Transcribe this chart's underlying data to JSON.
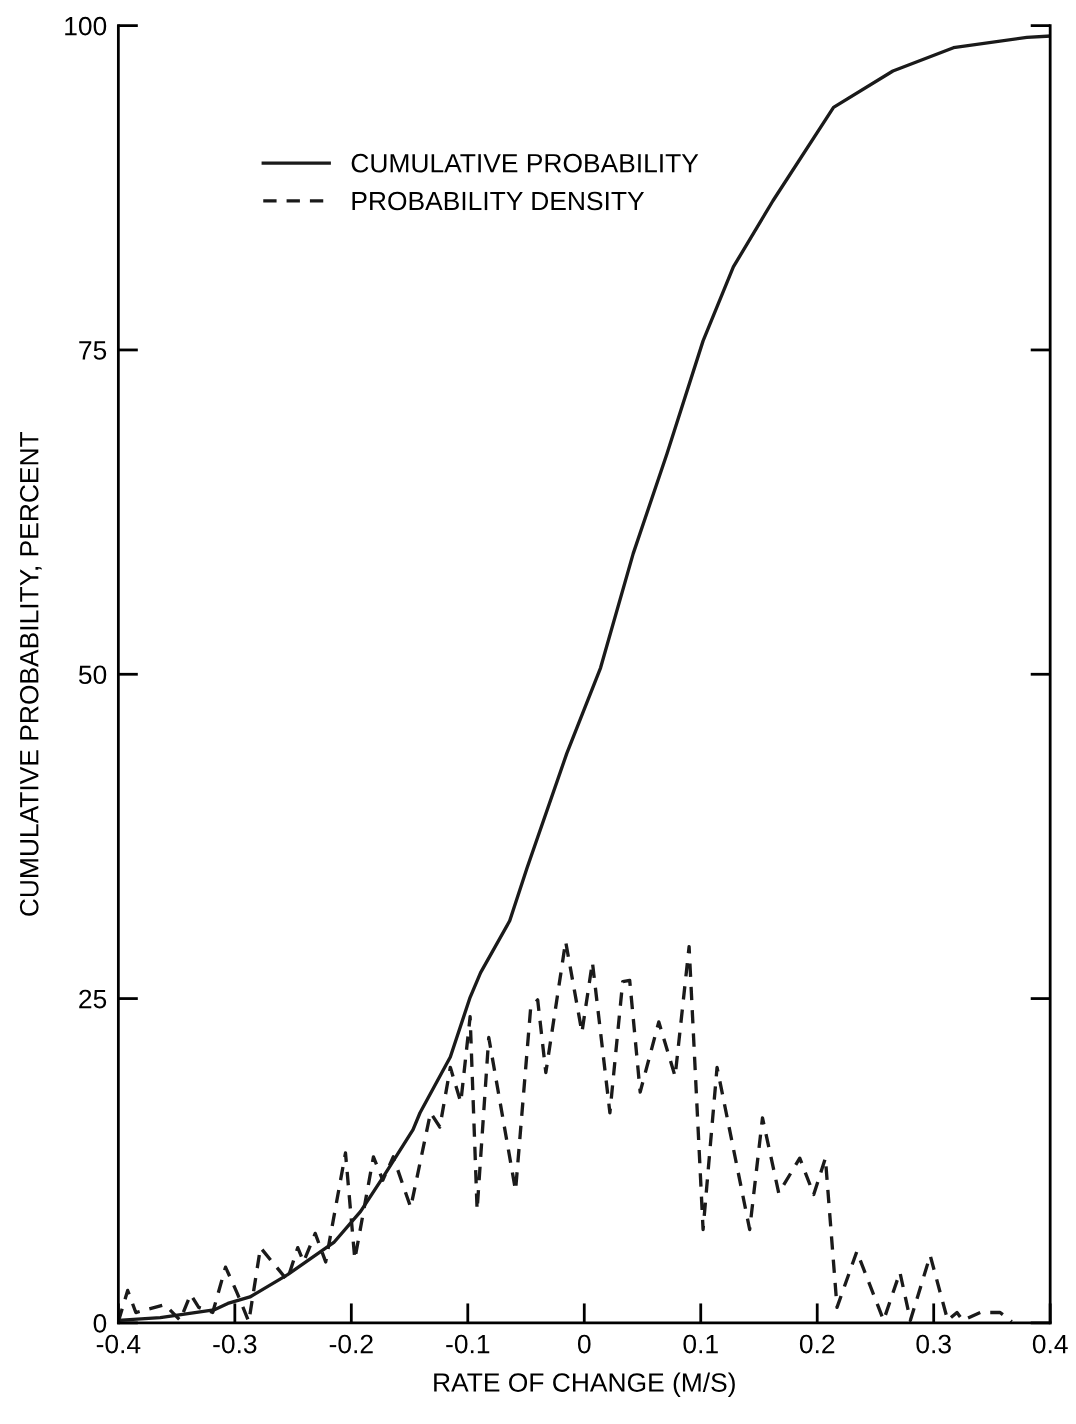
{
  "chart_data": {
    "type": "line",
    "xlabel": "RATE OF CHANGE (M/S)",
    "ylabel": "CUMULATIVE PROBABILITY, PERCENT",
    "xlim": [
      -0.4,
      0.4
    ],
    "ylim": [
      0,
      100
    ],
    "xticks": [
      -0.4,
      -0.3,
      -0.2,
      -0.1,
      0,
      0.1,
      0.2,
      0.3,
      0.4
    ],
    "yticks": [
      0,
      25,
      50,
      75,
      100
    ],
    "grid": false,
    "legend": "top left",
    "marker": "none",
    "series": [
      {
        "name": "CUMULATIVE PROBABILITY",
        "color": "#1a1a1a",
        "line_style": "solid",
        "x": [
          -0.4,
          -0.364,
          -0.318,
          -0.306,
          -0.287,
          -0.255,
          -0.215,
          -0.192,
          -0.173,
          -0.147,
          -0.141,
          -0.115,
          -0.098,
          -0.089,
          -0.064,
          -0.049,
          -0.015,
          0.014,
          0.042,
          0.071,
          0.102,
          0.128,
          0.162,
          0.214,
          0.265,
          0.317,
          0.38,
          0.4
        ],
        "values": [
          0.2,
          0.4,
          1.0,
          1.5,
          2.0,
          3.7,
          6.2,
          8.6,
          11.2,
          14.9,
          16.2,
          20.5,
          25.1,
          27.0,
          31.0,
          35.1,
          43.9,
          50.5,
          59.3,
          67.0,
          75.7,
          81.4,
          86.5,
          93.7,
          96.5,
          98.3,
          99.1,
          99.2
        ]
      },
      {
        "name": "PROBABILITY DENSITY",
        "color": "#1a1a1a",
        "line_style": "dashed",
        "x": [
          -0.4,
          -0.392,
          -0.385,
          -0.36,
          -0.347,
          -0.338,
          -0.331,
          -0.319,
          -0.308,
          -0.298,
          -0.288,
          -0.278,
          -0.255,
          -0.246,
          -0.241,
          -0.231,
          -0.222,
          -0.205,
          -0.197,
          -0.181,
          -0.173,
          -0.164,
          -0.149,
          -0.132,
          -0.124,
          -0.115,
          -0.106,
          -0.098,
          -0.092,
          -0.082,
          -0.059,
          -0.046,
          -0.04,
          -0.033,
          -0.016,
          -0.002,
          0.007,
          0.022,
          0.033,
          0.039,
          0.048,
          0.064,
          0.078,
          0.09,
          0.102,
          0.114,
          0.142,
          0.153,
          0.167,
          0.185,
          0.197,
          0.207,
          0.217,
          0.234,
          0.257,
          0.271,
          0.28,
          0.297,
          0.312,
          0.32,
          0.325,
          0.34,
          0.357,
          0.367
        ],
        "values": [
          0.1,
          2.5,
          0.8,
          1.4,
          0.2,
          2.2,
          1.2,
          0.8,
          4.3,
          2.3,
          0.1,
          5.8,
          3.3,
          5.8,
          4.7,
          6.9,
          4.7,
          13.1,
          4.9,
          12.8,
          11.0,
          12.8,
          8.9,
          16.2,
          15.1,
          19.7,
          17.0,
          23.6,
          8.7,
          22.0,
          10.2,
          24.3,
          24.9,
          19.3,
          29.4,
          22.4,
          27.8,
          16.2,
          26.3,
          26.4,
          17.8,
          23.2,
          19.0,
          29.0,
          7.2,
          19.7,
          7.2,
          15.8,
          10.0,
          12.7,
          9.9,
          12.7,
          1.2,
          5.5,
          0.2,
          3.9,
          0.2,
          5.2,
          0.2,
          0.8,
          0.2,
          0.8,
          0.8,
          0.1
        ]
      }
    ]
  }
}
